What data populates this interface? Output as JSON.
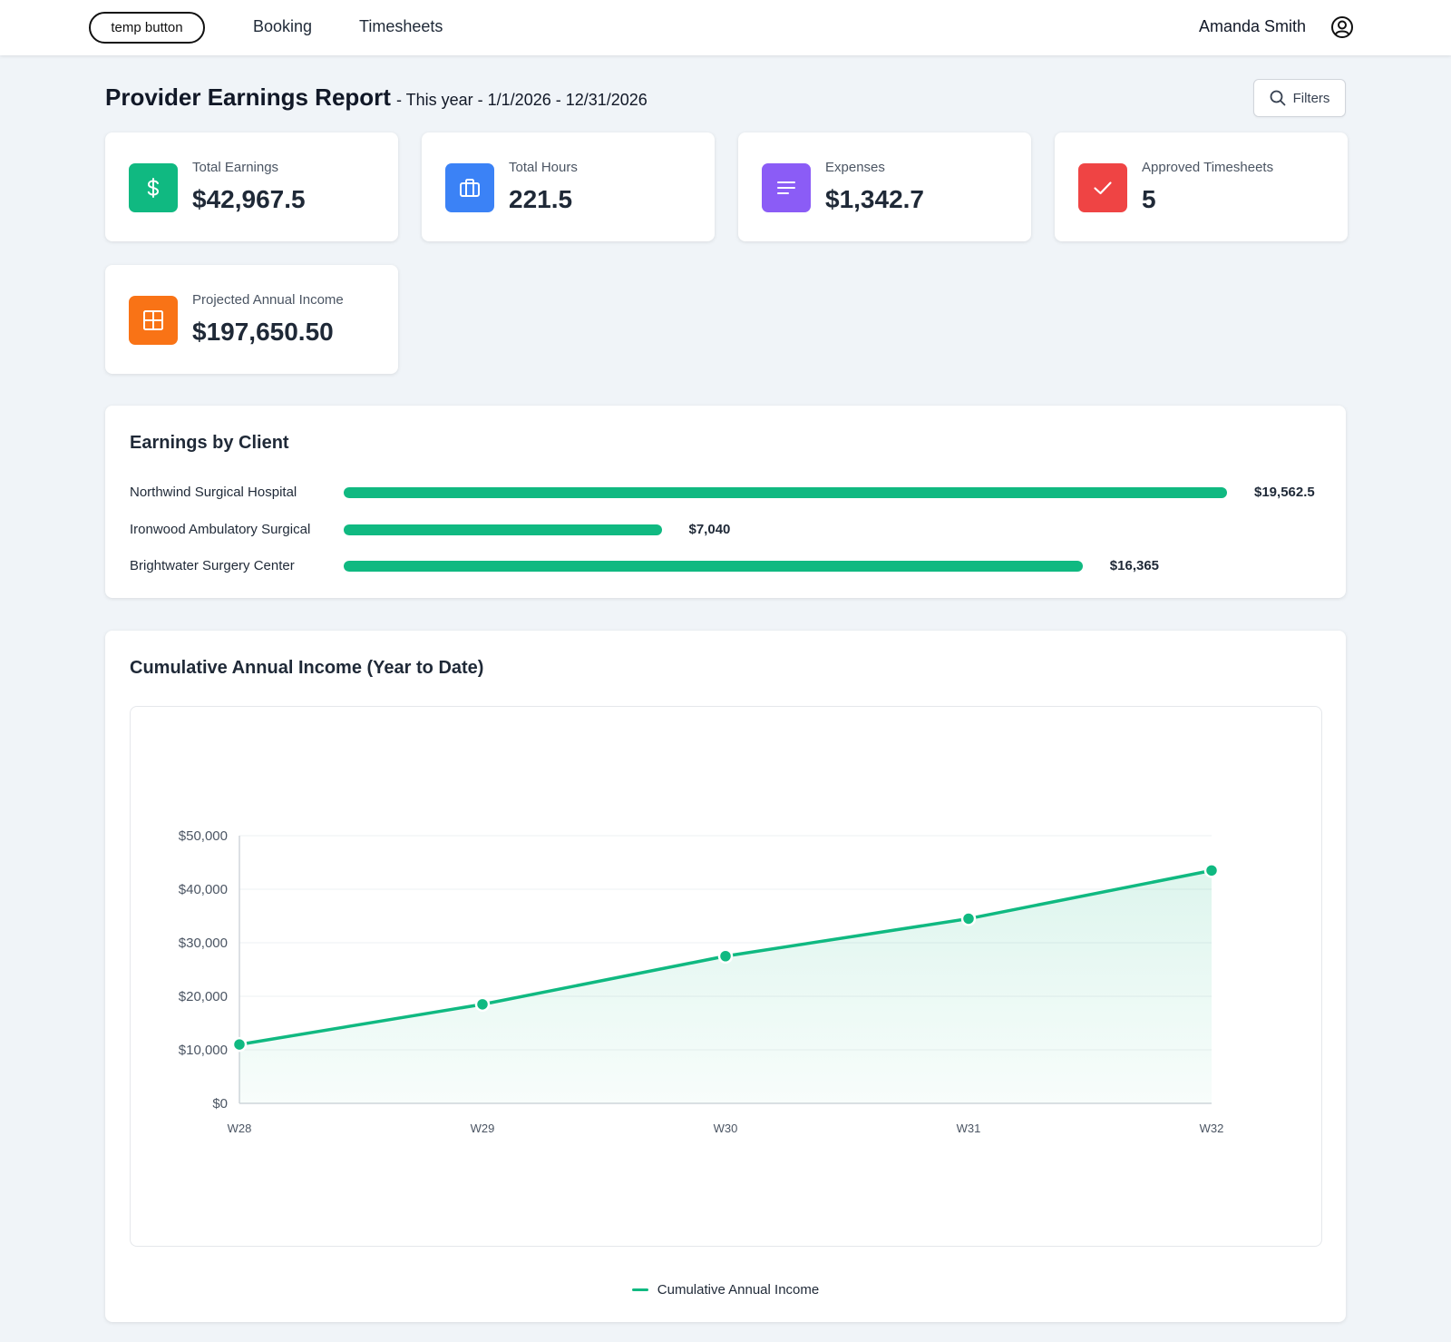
{
  "topbar": {
    "temp_button": "temp button",
    "nav": [
      "Booking",
      "Timesheets"
    ],
    "user_name": "Amanda Smith"
  },
  "header": {
    "title": "Provider Earnings Report",
    "subtitle": "- This year - 1/1/2026 - 12/31/2026",
    "filters_label": "Filters"
  },
  "stats": [
    {
      "label": "Total Earnings",
      "value": "$42,967.5",
      "icon": "dollar-icon",
      "color": "#10b981"
    },
    {
      "label": "Total Hours",
      "value": "221.5",
      "icon": "briefcase-icon",
      "color": "#3b82f6"
    },
    {
      "label": "Expenses",
      "value": "$1,342.7",
      "icon": "document-lines-icon",
      "color": "#8b5cf6"
    },
    {
      "label": "Approved Timesheets",
      "value": "5",
      "icon": "check-icon",
      "color": "#ef4444"
    },
    {
      "label": "Projected Annual Income",
      "value": "$197,650.50",
      "icon": "grid-icon",
      "color": "#f97316"
    }
  ],
  "earnings_by_client": {
    "title": "Earnings by Client",
    "clients": [
      {
        "name": "Northwind Surgical Hospital",
        "value_label": "$19,562.5",
        "value": 19562.5
      },
      {
        "name": "Ironwood Ambulatory Surgical",
        "value_label": "$7,040",
        "value": 7040
      },
      {
        "name": "Brightwater Surgery Center",
        "value_label": "$16,365",
        "value": 16365
      }
    ],
    "bar_color": "#10b981"
  },
  "cumulative": {
    "title": "Cumulative Annual Income (Year to Date)",
    "legend": "Cumulative Annual Income"
  },
  "chart_data": {
    "type": "area",
    "categories": [
      "W28",
      "W29",
      "W30",
      "W31",
      "W32"
    ],
    "series": [
      {
        "name": "Cumulative Annual Income",
        "values": [
          11000,
          18500,
          27500,
          34500,
          43500
        ]
      }
    ],
    "y_ticks": [
      "$0",
      "$10,000",
      "$20,000",
      "$30,000",
      "$40,000",
      "$50,000"
    ],
    "ylim": [
      0,
      50000
    ],
    "grid": true,
    "legend_position": "bottom-center",
    "color": "#10b981"
  }
}
